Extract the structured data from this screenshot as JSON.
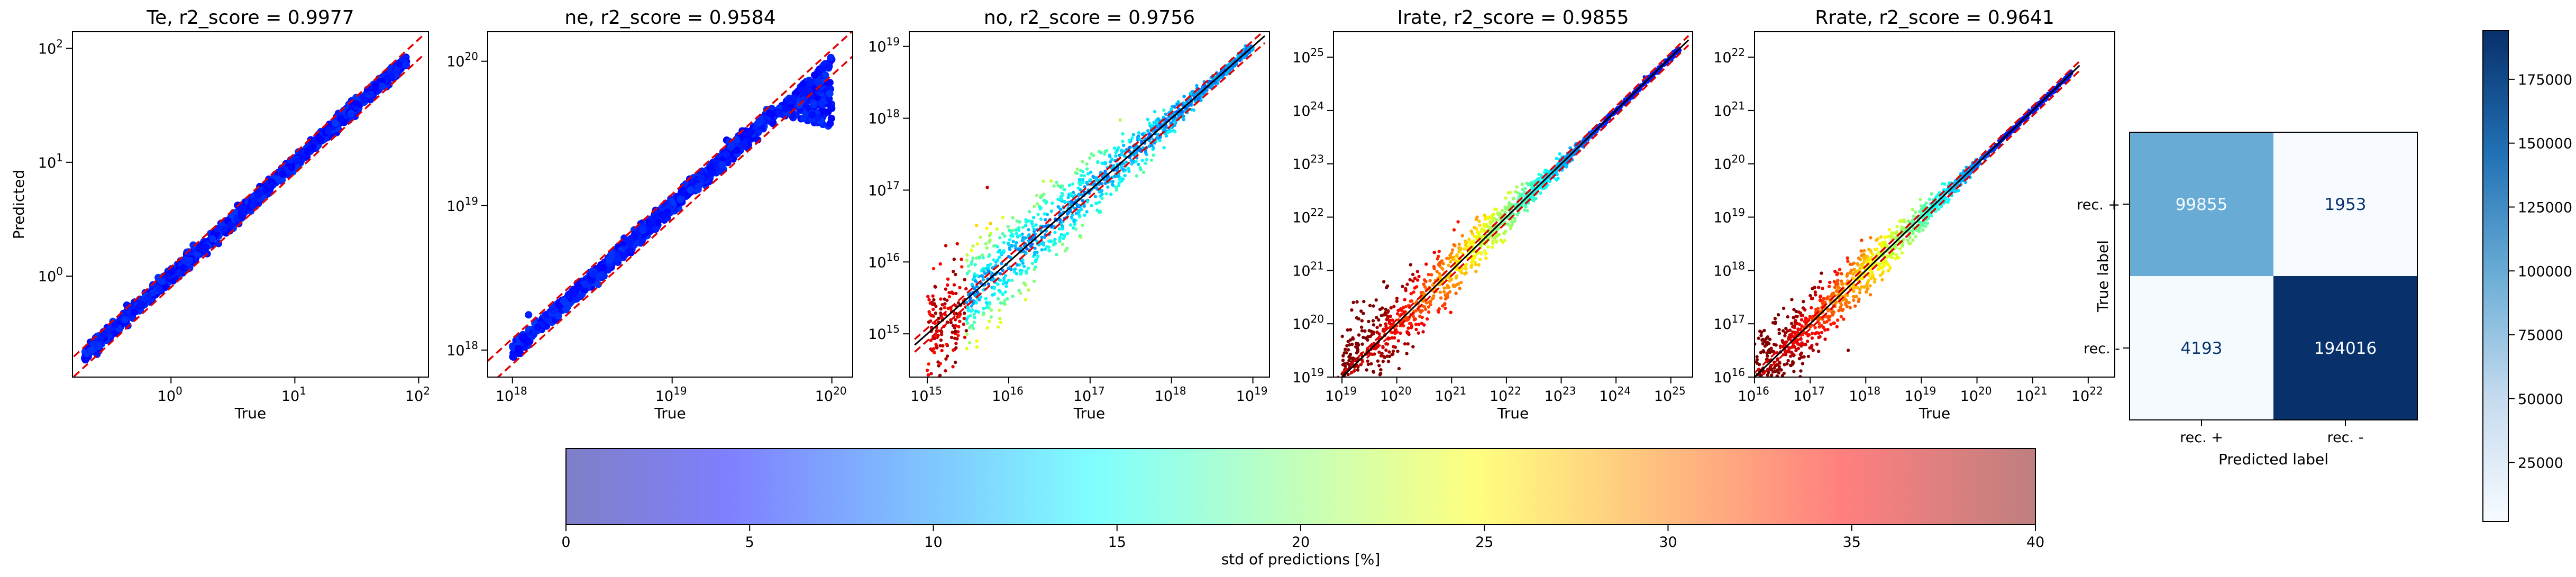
{
  "chart_data": [
    {
      "type": "scatter",
      "title": "Te, r2_score = 0.9977",
      "xlabel": "True",
      "ylabel": "Predicted",
      "xscale": "log",
      "yscale": "log",
      "xlim": [
        0.16,
        120
      ],
      "ylim": [
        0.13,
        140
      ],
      "xticks": [
        {
          "v": 1,
          "base": "10",
          "exp": "0"
        },
        {
          "v": 10,
          "base": "10",
          "exp": "1"
        },
        {
          "v": 100,
          "base": "10",
          "exp": "2"
        }
      ],
      "yticks": [
        {
          "v": 1,
          "base": "10",
          "exp": "0"
        },
        {
          "v": 10,
          "base": "10",
          "exp": "1"
        },
        {
          "v": 100,
          "base": "10",
          "exp": "2"
        }
      ],
      "data_range": [
        0.2,
        80
      ],
      "band": [
        0.8,
        1.2
      ],
      "colormap_style": "blue",
      "identity_line": false,
      "bulge": {
        "start_frac": 0.0,
        "lo": 1.0,
        "hi": 1.0
      },
      "scatter_spread": 0.05
    },
    {
      "type": "scatter",
      "title": "ne, r2_score = 0.9584",
      "xlabel": "True",
      "ylabel": "",
      "xscale": "log",
      "yscale": "log",
      "xlim": [
        7e+17,
        1.35e+20
      ],
      "ylim": [
        6.5e+17,
        1.6e+20
      ],
      "xticks": [
        {
          "v": 1e+18,
          "base": "10",
          "exp": "18"
        },
        {
          "v": 1e+19,
          "base": "10",
          "exp": "19"
        },
        {
          "v": 1e+20,
          "base": "10",
          "exp": "20"
        }
      ],
      "yticks": [
        {
          "v": 1e+18,
          "base": "10",
          "exp": "18"
        },
        {
          "v": 1e+19,
          "base": "10",
          "exp": "19"
        },
        {
          "v": 1e+20,
          "base": "10",
          "exp": "20"
        }
      ],
      "data_range": [
        1e+18,
        1e+20
      ],
      "band": [
        0.8,
        1.2
      ],
      "colormap_style": "blue",
      "identity_line": false,
      "bulge": {
        "start_frac": 0.82,
        "lo": 0.35,
        "hi": 1.1
      },
      "scatter_spread": 0.05
    },
    {
      "type": "scatter",
      "title": "no, r2_score = 0.9756",
      "xlabel": "True",
      "ylabel": "",
      "xscale": "log",
      "yscale": "log",
      "xlim": [
        600000000000000.0,
        1.6e+19
      ],
      "ylim": [
        250000000000000.0,
        1.6e+19
      ],
      "xticks": [
        {
          "v": 1000000000000000.0,
          "base": "10",
          "exp": "15"
        },
        {
          "v": 1e+16,
          "base": "10",
          "exp": "16"
        },
        {
          "v": 1e+17,
          "base": "10",
          "exp": "17"
        },
        {
          "v": 1e+18,
          "base": "10",
          "exp": "18"
        },
        {
          "v": 1e+19,
          "base": "10",
          "exp": "19"
        }
      ],
      "yticks": [
        {
          "v": 1000000000000000.0,
          "base": "10",
          "exp": "15"
        },
        {
          "v": 1e+16,
          "base": "10",
          "exp": "16"
        },
        {
          "v": 1e+17,
          "base": "10",
          "exp": "17"
        },
        {
          "v": 1e+18,
          "base": "10",
          "exp": "18"
        },
        {
          "v": 1e+19,
          "base": "10",
          "exp": "19"
        }
      ],
      "data_range": [
        1000000000000000.0,
        1e+19
      ],
      "band": [
        0.8,
        1.2
      ],
      "colormap_style": "mixed",
      "identity_line": true,
      "bulge": {
        "start_frac": 0.0,
        "lo": 1.0,
        "hi": 1.0
      },
      "scatter_spread": 0.45
    },
    {
      "type": "scatter",
      "title": "Irate, r2_score = 0.9855",
      "xlabel": "True",
      "ylabel": "",
      "xscale": "log",
      "yscale": "log",
      "xlim": [
        7e+18,
        2.5e+25
      ],
      "ylim": [
        1e+19,
        3e+25
      ],
      "xticks": [
        {
          "v": 1e+19,
          "base": "10",
          "exp": "19"
        },
        {
          "v": 1e+20,
          "base": "10",
          "exp": "20"
        },
        {
          "v": 1e+21,
          "base": "10",
          "exp": "21"
        },
        {
          "v": 1e+22,
          "base": "10",
          "exp": "22"
        },
        {
          "v": 1e+23,
          "base": "10",
          "exp": "23"
        },
        {
          "v": 1e+24,
          "base": "10",
          "exp": "24"
        },
        {
          "v": 1e+25,
          "base": "10",
          "exp": "25"
        }
      ],
      "yticks": [
        {
          "v": 1e+19,
          "base": "10",
          "exp": "19"
        },
        {
          "v": 1e+20,
          "base": "10",
          "exp": "20"
        },
        {
          "v": 1e+21,
          "base": "10",
          "exp": "21"
        },
        {
          "v": 1e+22,
          "base": "10",
          "exp": "22"
        },
        {
          "v": 1e+23,
          "base": "10",
          "exp": "23"
        },
        {
          "v": 1e+24,
          "base": "10",
          "exp": "24"
        },
        {
          "v": 1e+25,
          "base": "10",
          "exp": "25"
        }
      ],
      "data_range": [
        1e+19,
        1.5e+25
      ],
      "band": [
        0.8,
        1.2
      ],
      "colormap_style": "red",
      "identity_line": true,
      "bulge": {
        "start_frac": 0.0,
        "lo": 1.0,
        "hi": 1.0
      },
      "scatter_spread": 0.45
    },
    {
      "type": "scatter",
      "title": "Rrate, r2_score = 0.9641",
      "xlabel": "True",
      "ylabel": "",
      "xscale": "log",
      "yscale": "log",
      "xlim": [
        1e+16,
        3e+22
      ],
      "ylim": [
        1e+16,
        3e+22
      ],
      "xticks": [
        {
          "v": 1e+16,
          "base": "10",
          "exp": "16"
        },
        {
          "v": 1e+17,
          "base": "10",
          "exp": "17"
        },
        {
          "v": 1e+18,
          "base": "10",
          "exp": "18"
        },
        {
          "v": 1e+19,
          "base": "10",
          "exp": "19"
        },
        {
          "v": 1e+20,
          "base": "10",
          "exp": "20"
        },
        {
          "v": 1e+21,
          "base": "10",
          "exp": "21"
        },
        {
          "v": 1e+22,
          "base": "10",
          "exp": "22"
        }
      ],
      "yticks": [
        {
          "v": 1e+16,
          "base": "10",
          "exp": "16"
        },
        {
          "v": 1e+17,
          "base": "10",
          "exp": "17"
        },
        {
          "v": 1e+18,
          "base": "10",
          "exp": "18"
        },
        {
          "v": 1e+19,
          "base": "10",
          "exp": "19"
        },
        {
          "v": 1e+20,
          "base": "10",
          "exp": "20"
        },
        {
          "v": 1e+21,
          "base": "10",
          "exp": "21"
        },
        {
          "v": 1e+22,
          "base": "10",
          "exp": "22"
        }
      ],
      "data_range": [
        1e+16,
        5e+21
      ],
      "band": [
        0.8,
        1.2
      ],
      "colormap_style": "red",
      "identity_line": true,
      "bulge": {
        "start_frac": 0.0,
        "lo": 1.0,
        "hi": 1.0
      },
      "scatter_spread": 0.4
    },
    {
      "type": "heatmap",
      "title": "",
      "xlabel": "Predicted label",
      "ylabel": "True label",
      "x_categories": [
        "rec. +",
        "rec. -"
      ],
      "y_categories": [
        "rec. +",
        "rec. -"
      ],
      "values": [
        [
          99855,
          1953
        ],
        [
          4193,
          194016
        ]
      ],
      "colormap": "Blues",
      "colorbar_range": [
        1953,
        194016
      ],
      "colorbar_ticks": [
        "25000",
        "50000",
        "75000",
        "100000",
        "125000",
        "150000",
        "175000"
      ],
      "colorbar_tick_values": [
        25000,
        50000,
        75000,
        100000,
        125000,
        150000,
        175000
      ]
    }
  ],
  "colorbar": {
    "label": "std of predictions [%]",
    "range": [
      0,
      40
    ],
    "ticks": [
      "0",
      "5",
      "10",
      "15",
      "20",
      "25",
      "30",
      "35",
      "40"
    ],
    "tick_values": [
      0,
      5,
      10,
      15,
      20,
      25,
      30,
      35,
      40
    ],
    "colormap": "jet"
  }
}
